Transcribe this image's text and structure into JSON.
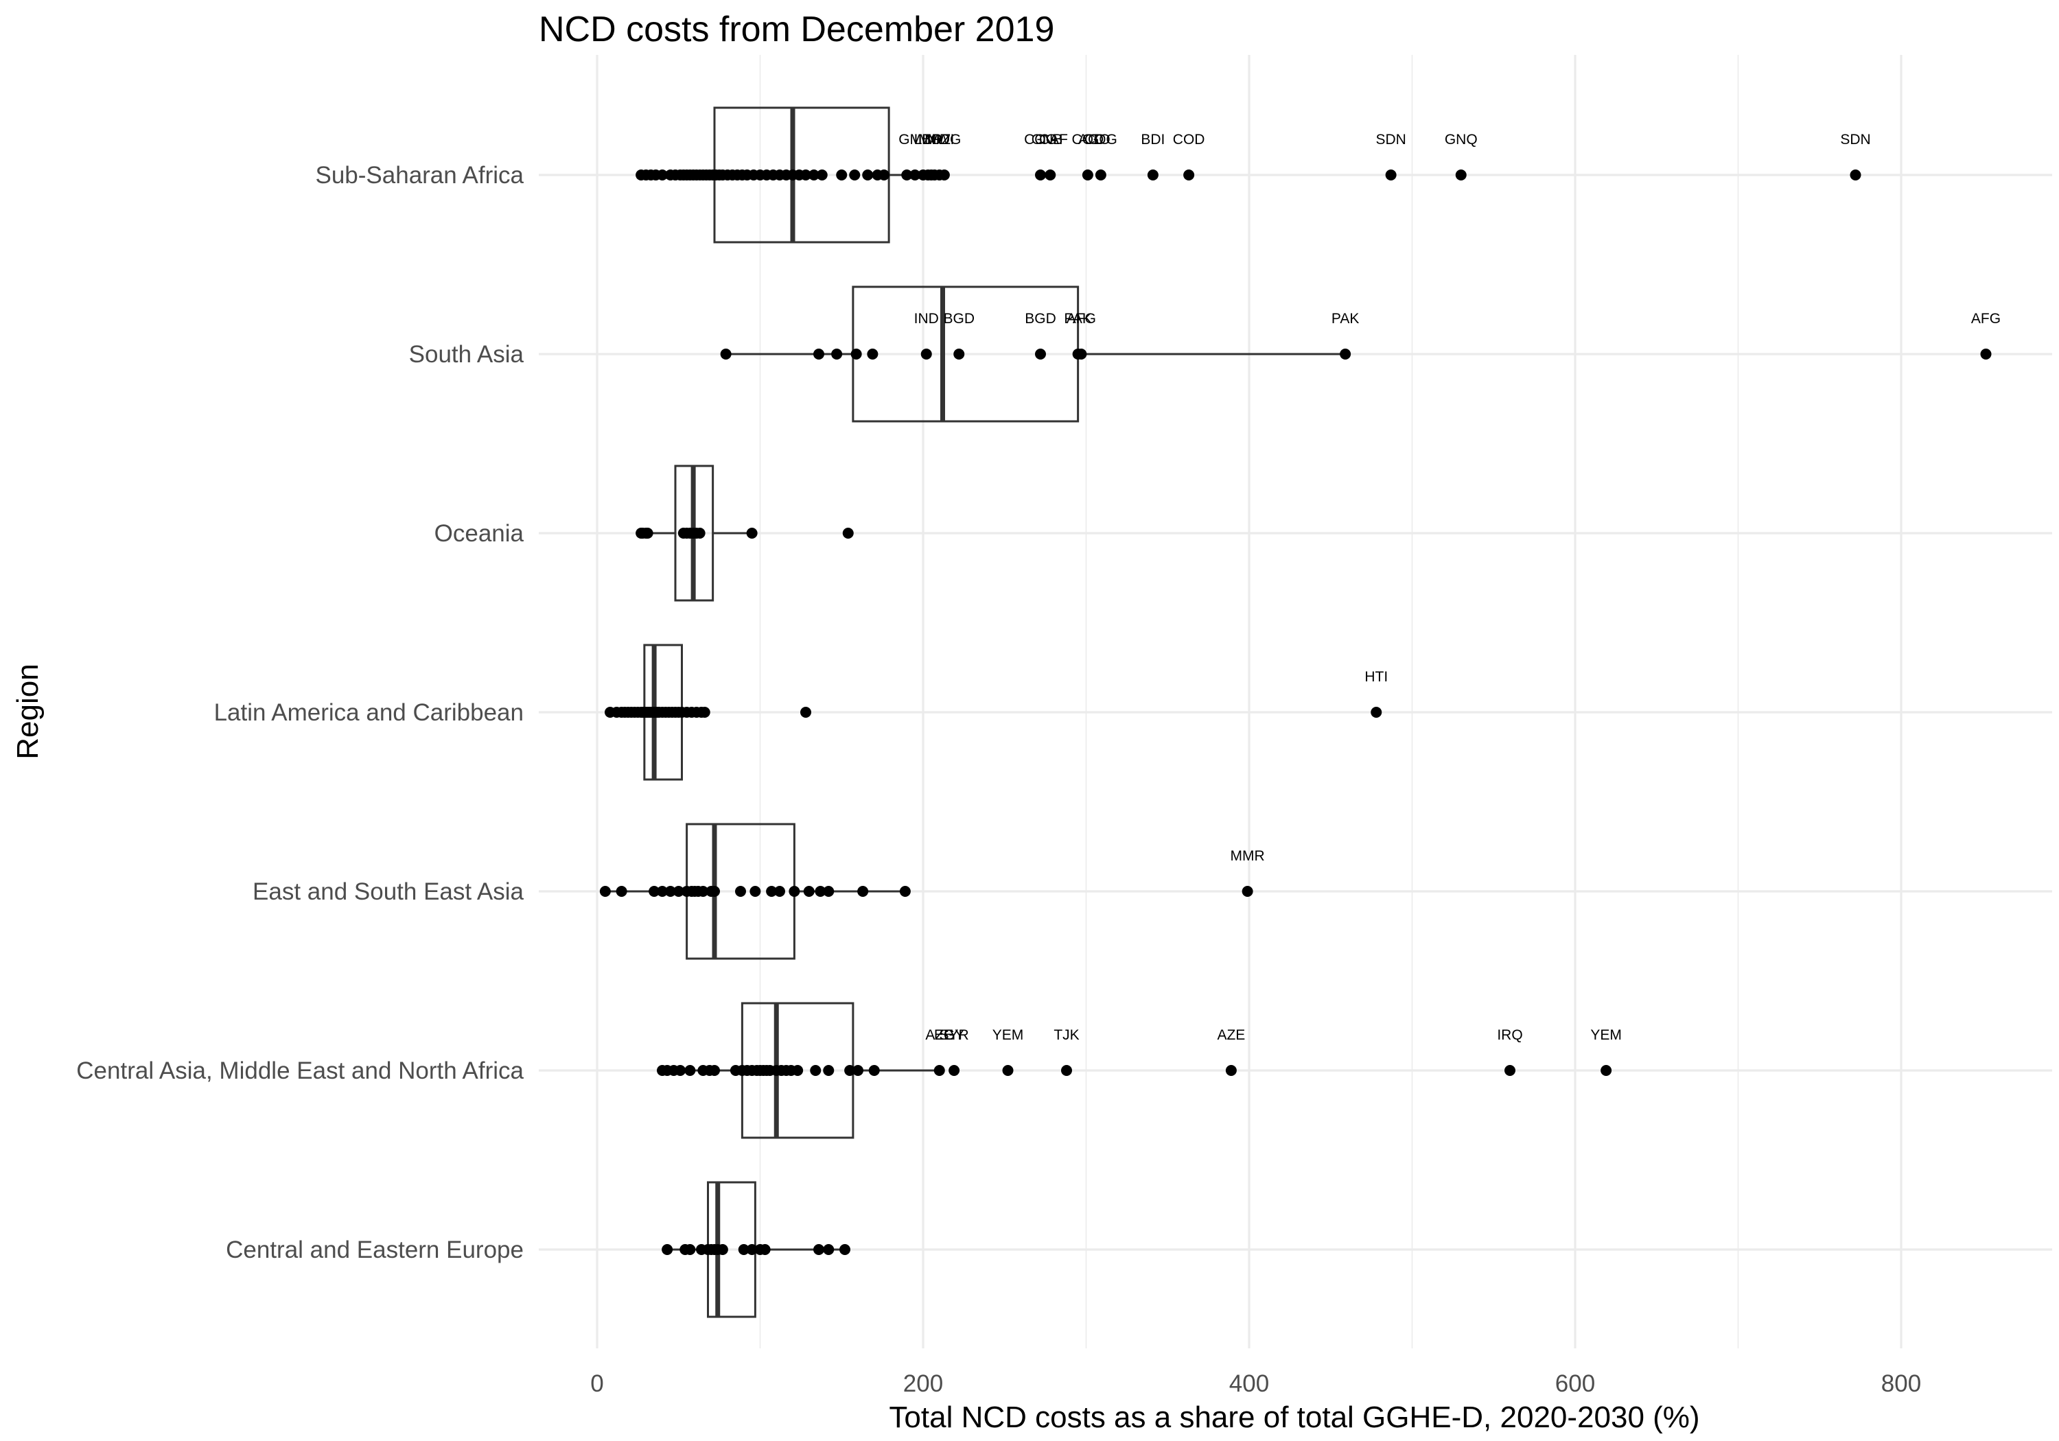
{
  "chart_data": {
    "type": "box",
    "title": "NCD costs from December 2019",
    "xlabel": "Total NCD costs as a share of total GGHE-D, 2020-2030 (%)",
    "ylabel": "Region",
    "xlim": [
      -37,
      895
    ],
    "xticks": [
      0,
      200,
      400,
      600,
      800
    ],
    "grid": true,
    "categories": [
      "Sub-Saharan Africa",
      "South Asia",
      "Oceania",
      "Latin America and Caribbean",
      "East and South East Asia",
      "Central Asia, Middle East and North Africa",
      "Central and Eastern Europe"
    ],
    "boxes": [
      {
        "region": "Sub-Saharan Africa",
        "q1": 72,
        "median": 120,
        "q3": 179,
        "whisker_low": 27,
        "whisker_high": 215
      },
      {
        "region": "South Asia",
        "q1": 157,
        "median": 212,
        "q3": 295,
        "whisker_low": 79,
        "whisker_high": 459
      },
      {
        "region": "Oceania",
        "q1": 48,
        "median": 59,
        "q3": 71,
        "whisker_low": 27,
        "whisker_high": 95
      },
      {
        "region": "Latin America and Caribbean",
        "q1": 29,
        "median": 35,
        "q3": 52,
        "whisker_low": 8,
        "whisker_high": 66
      },
      {
        "region": "East and South East Asia",
        "q1": 55,
        "median": 72,
        "q3": 121,
        "whisker_low": 5,
        "whisker_high": 189
      },
      {
        "region": "Central Asia, Middle East and North Africa",
        "q1": 89,
        "median": 110,
        "q3": 157,
        "whisker_low": 40,
        "whisker_high": 210
      },
      {
        "region": "Central and Eastern Europe",
        "q1": 68,
        "median": 74,
        "q3": 97,
        "whisker_low": 43,
        "whisker_high": 152
      }
    ],
    "points": [
      {
        "region": "Sub-Saharan Africa",
        "values": [
          27,
          30,
          33,
          36,
          40,
          45,
          48,
          51,
          53,
          55,
          57,
          59,
          61,
          63,
          65,
          67,
          69,
          71,
          73,
          75,
          77,
          80,
          83,
          86,
          89,
          92,
          96,
          100,
          104,
          108,
          112,
          116,
          120,
          124,
          128,
          133,
          138,
          150,
          158,
          166,
          172,
          176,
          190,
          195,
          200,
          203,
          205,
          207,
          210,
          213,
          272,
          278,
          301,
          309,
          341,
          363,
          487,
          530,
          772
        ]
      },
      {
        "region": "South Asia",
        "values": [
          79,
          136,
          147,
          159,
          169,
          202,
          222,
          272,
          295,
          297,
          459,
          852
        ]
      },
      {
        "region": "Oceania",
        "values": [
          27,
          28,
          30,
          31,
          53,
          55,
          57,
          59,
          61,
          63,
          95,
          154
        ]
      },
      {
        "region": "Latin America and Caribbean",
        "values": [
          8,
          12,
          15,
          17,
          19,
          21,
          23,
          25,
          27,
          28,
          29,
          30,
          31,
          32,
          33,
          34,
          35,
          36,
          37,
          38,
          40,
          42,
          44,
          46,
          48,
          50,
          52,
          55,
          58,
          61,
          64,
          66,
          128,
          478
        ]
      },
      {
        "region": "East and South East Asia",
        "values": [
          5,
          15,
          35,
          40,
          45,
          50,
          55,
          58,
          60,
          62,
          65,
          70,
          72,
          88,
          97,
          107,
          112,
          121,
          130,
          137,
          142,
          163,
          189,
          399
        ]
      },
      {
        "region": "Central Asia, Middle East and North Africa",
        "values": [
          40,
          43,
          47,
          51,
          57,
          65,
          69,
          72,
          85,
          89,
          92,
          95,
          98,
          100,
          102,
          104,
          106,
          110,
          113,
          116,
          119,
          123,
          134,
          142,
          155,
          160,
          170,
          210,
          219,
          252,
          288,
          389,
          560,
          619
        ]
      },
      {
        "region": "Central and Eastern Europe",
        "values": [
          43,
          54,
          57,
          64,
          68,
          70,
          72,
          74,
          77,
          90,
          95,
          100,
          103,
          136,
          142,
          152
        ]
      }
    ],
    "point_labels": [
      {
        "region": "Sub-Saharan Africa",
        "labels": [
          {
            "text": "GMB",
            "x": 195
          },
          {
            "text": "LBR",
            "x": 203
          },
          {
            "text": "MOZ",
            "x": 207
          },
          {
            "text": "MWI",
            "x": 210
          },
          {
            "text": "MDG",
            "x": 213
          },
          {
            "text": "COG",
            "x": 272
          },
          {
            "text": "GNB",
            "x": 276
          },
          {
            "text": "CAF",
            "x": 280
          },
          {
            "text": "COD",
            "x": 301
          },
          {
            "text": "AGO",
            "x": 305
          },
          {
            "text": "COG",
            "x": 309
          },
          {
            "text": "BDI",
            "x": 341
          },
          {
            "text": "COD",
            "x": 363
          },
          {
            "text": "SDN",
            "x": 487
          },
          {
            "text": "GNQ",
            "x": 530
          },
          {
            "text": "SDN",
            "x": 772
          }
        ]
      },
      {
        "region": "South Asia",
        "labels": [
          {
            "text": "IND",
            "x": 202
          },
          {
            "text": "BGD",
            "x": 222
          },
          {
            "text": "BGD",
            "x": 272
          },
          {
            "text": "PAK",
            "x": 295
          },
          {
            "text": "AFG",
            "x": 297
          },
          {
            "text": "PAK",
            "x": 459
          },
          {
            "text": "AFG",
            "x": 852
          }
        ]
      },
      {
        "region": "Latin America and Caribbean",
        "labels": [
          {
            "text": "HTI",
            "x": 478
          }
        ]
      },
      {
        "region": "East and South East Asia",
        "labels": [
          {
            "text": "MMR",
            "x": 399
          }
        ]
      },
      {
        "region": "Central Asia, Middle East and North Africa",
        "labels": [
          {
            "text": "AZE",
            "x": 210
          },
          {
            "text": "EGY",
            "x": 216
          },
          {
            "text": "SYR",
            "x": 219
          },
          {
            "text": "YEM",
            "x": 252
          },
          {
            "text": "TJK",
            "x": 288
          },
          {
            "text": "AZE",
            "x": 389
          },
          {
            "text": "IRQ",
            "x": 560
          },
          {
            "text": "YEM",
            "x": 619
          }
        ]
      }
    ]
  }
}
